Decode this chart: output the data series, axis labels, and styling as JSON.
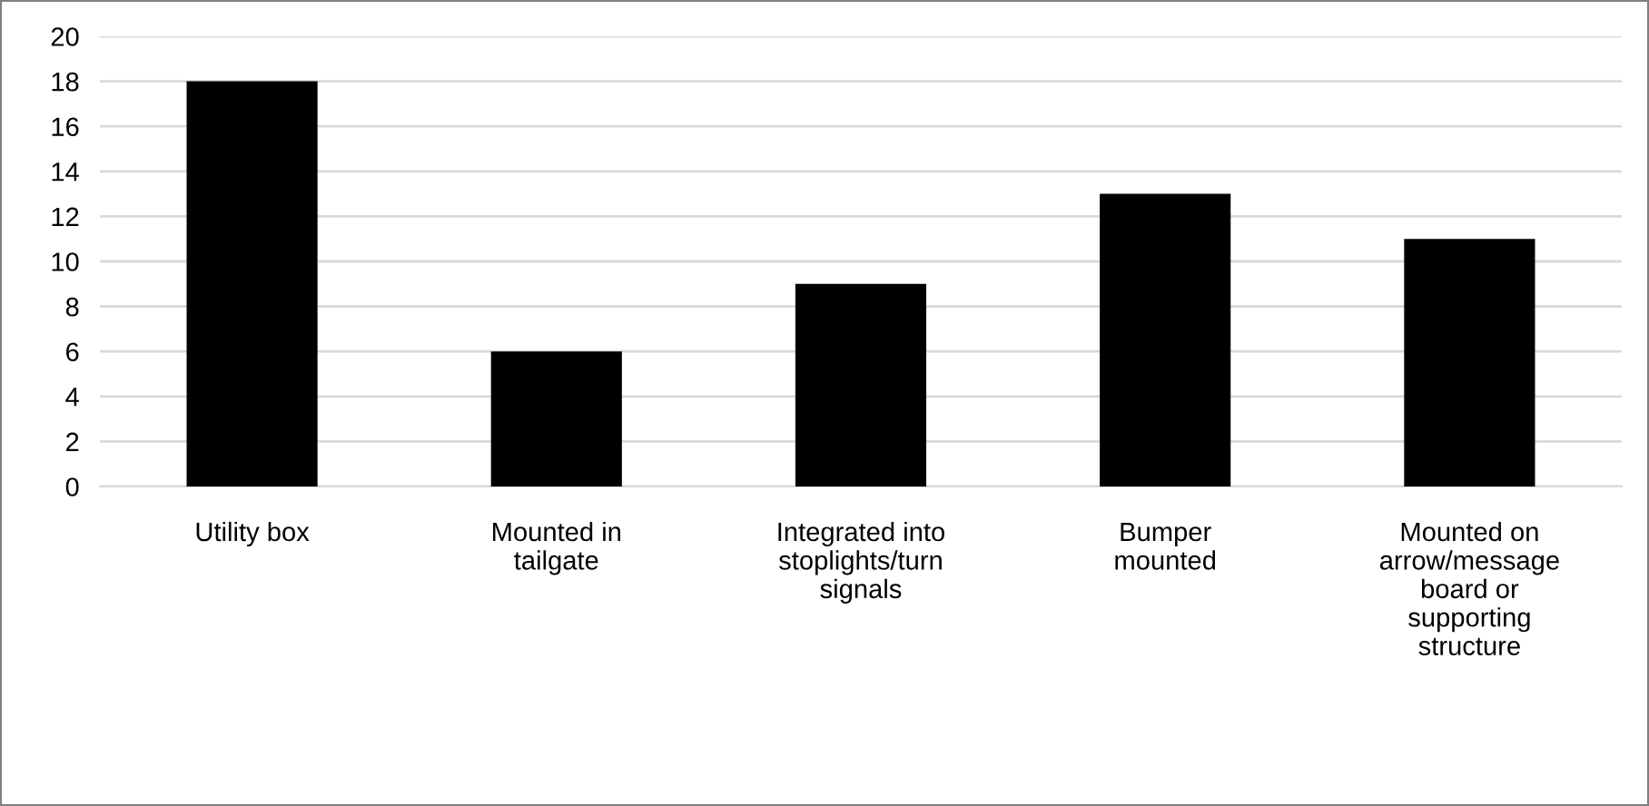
{
  "chart_data": {
    "type": "bar",
    "categories": [
      "Utility box",
      "Mounted in tailgate",
      "Integrated into stoplights/turn signals",
      "Bumper mounted",
      "Mounted on arrow/message board or supporting structure"
    ],
    "values": [
      18,
      6,
      9,
      13,
      11
    ],
    "color": "#000000",
    "ylim": [
      0,
      20
    ],
    "yticks": [
      0,
      2,
      4,
      6,
      8,
      10,
      12,
      14,
      16,
      18,
      20
    ],
    "grid": "y"
  }
}
